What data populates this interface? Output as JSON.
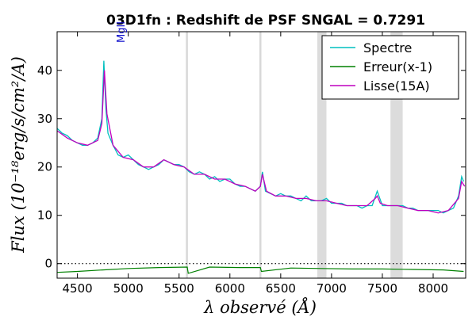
{
  "chart_data": {
    "type": "line",
    "title": "03D1fn : Redshift de PSF SNGAL = 0.7291",
    "xlabel": "λ observé (Å)",
    "ylabel": "Flux (10⁻¹⁸erg/s/cm²/A)",
    "xlim": [
      4300,
      8320
    ],
    "ylim": [
      -3,
      48
    ],
    "xticks": [
      4500,
      5000,
      5500,
      6000,
      6500,
      7000,
      7500,
      8000
    ],
    "yticks": [
      0,
      10,
      20,
      30,
      40
    ],
    "grid": false,
    "legend_position": "top-right",
    "annotations": [
      {
        "text": "MgII",
        "x": 4775
      }
    ],
    "vertical_lines": [
      5577,
      6300
    ],
    "shaded_bands": [
      [
        6860,
        6950
      ],
      [
        7580,
        7700
      ]
    ],
    "zero_line": 0,
    "series": [
      {
        "name": "Spectre",
        "color": "#00bfbf",
        "x": [
          4300,
          4350,
          4400,
          4450,
          4500,
          4550,
          4600,
          4650,
          4700,
          4740,
          4760,
          4770,
          4780,
          4800,
          4850,
          4900,
          4950,
          5000,
          5050,
          5100,
          5150,
          5200,
          5250,
          5300,
          5350,
          5400,
          5450,
          5500,
          5550,
          5600,
          5650,
          5700,
          5750,
          5800,
          5850,
          5900,
          5950,
          6000,
          6050,
          6100,
          6150,
          6200,
          6250,
          6300,
          6320,
          6350,
          6400,
          6450,
          6500,
          6550,
          6600,
          6650,
          6700,
          6750,
          6800,
          6850,
          6900,
          6950,
          7000,
          7050,
          7100,
          7150,
          7200,
          7250,
          7300,
          7350,
          7400,
          7450,
          7500,
          7550,
          7600,
          7650,
          7700,
          7750,
          7800,
          7850,
          7900,
          7950,
          8000,
          8050,
          8100,
          8150,
          8200,
          8250,
          8280,
          8300
        ],
        "y": [
          28,
          27,
          26.5,
          25.5,
          25,
          24.5,
          24.5,
          25,
          26,
          30,
          42,
          37,
          32,
          27,
          24.5,
          22.5,
          22,
          22.5,
          21.5,
          20.5,
          20,
          19.5,
          20,
          20.5,
          21.5,
          21,
          20.5,
          20.5,
          20,
          19,
          18.5,
          19,
          18.5,
          17.5,
          18,
          17,
          17.5,
          17.5,
          16.5,
          16,
          16,
          15.5,
          15,
          16,
          19,
          15,
          14.5,
          14,
          14.5,
          14,
          14,
          13.5,
          13,
          14,
          13,
          13,
          13,
          13.5,
          12.5,
          12.5,
          12.5,
          12,
          12,
          12,
          11.5,
          12,
          12,
          15,
          12,
          12,
          12,
          12,
          12,
          11.5,
          11.5,
          11,
          11,
          11,
          11,
          11,
          10.5,
          11,
          11.5,
          14,
          18,
          17
        ]
      },
      {
        "name": "Erreur(x-1)",
        "color": "#008000",
        "x": [
          4300,
          4500,
          4750,
          5000,
          5300,
          5580,
          5590,
          5800,
          6100,
          6300,
          6310,
          6600,
          6900,
          7200,
          7500,
          7800,
          8100,
          8300
        ],
        "y": [
          -1.8,
          -1.6,
          -1.3,
          -1.0,
          -0.8,
          -0.7,
          -2.0,
          -0.7,
          -0.8,
          -0.8,
          -1.6,
          -0.9,
          -1.0,
          -1.1,
          -1.1,
          -1.2,
          -1.3,
          -1.6
        ]
      },
      {
        "name": "Lisse(15A)",
        "color": "#bf00bf",
        "x": [
          4300,
          4400,
          4500,
          4600,
          4700,
          4740,
          4765,
          4790,
          4850,
          4950,
          5050,
          5150,
          5250,
          5350,
          5450,
          5550,
          5650,
          5750,
          5850,
          5950,
          6050,
          6150,
          6250,
          6300,
          6320,
          6360,
          6450,
          6550,
          6650,
          6750,
          6850,
          6950,
          7050,
          7150,
          7250,
          7350,
          7430,
          7450,
          7480,
          7550,
          7650,
          7750,
          7850,
          7950,
          8050,
          8150,
          8250,
          8280,
          8310
        ],
        "y": [
          27.5,
          26,
          25,
          24.5,
          25.5,
          29,
          40,
          31,
          24.5,
          22,
          21.5,
          20,
          20,
          21.5,
          20.5,
          20,
          18.5,
          18.5,
          17.5,
          17.5,
          16.5,
          16,
          15,
          16,
          18.5,
          15,
          14,
          14,
          13.5,
          13.5,
          13,
          13,
          12.5,
          12,
          12,
          12,
          13.5,
          14,
          12.5,
          12,
          12,
          11.5,
          11,
          11,
          10.5,
          11,
          13.5,
          17,
          16
        ]
      }
    ]
  }
}
